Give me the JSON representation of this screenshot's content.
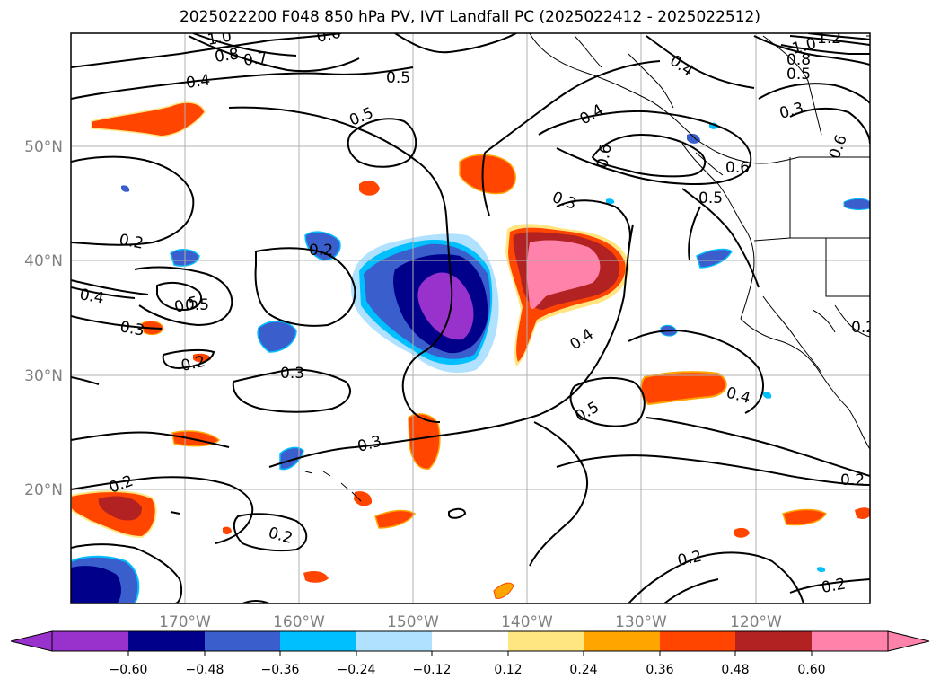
{
  "title": "2025022200 F048 850 hPa PV, IVT Landfall PC (2025022412 - 2025022512)",
  "axes": {
    "lon_ticks": [
      "170°W",
      "160°W",
      "150°W",
      "140°W",
      "130°W",
      "120°W"
    ],
    "lat_ticks": [
      "50°N",
      "40°N",
      "30°N",
      "20°N"
    ]
  },
  "colorbar": {
    "ticks": [
      "−0.60",
      "−0.48",
      "−0.36",
      "−0.24",
      "−0.12",
      "0.12",
      "0.24",
      "0.36",
      "0.48",
      "0.60"
    ],
    "colors": [
      "#9932cc",
      "#00008b",
      "#3a5fcd",
      "#00bfff",
      "#b0e2ff",
      "#ffffff",
      "#ffe680",
      "#ffa500",
      "#ff4500",
      "#b22222",
      "#ff82ab"
    ]
  },
  "contour_labels": [
    "1.0",
    "0.8",
    "0.7",
    "0.6",
    "0.5",
    "0.4",
    "0.5",
    "0.4",
    "0.6",
    "1.2",
    "1.0",
    "0.8",
    "0.5",
    "0.4",
    "0.3",
    "0.6",
    "0.6",
    "0.5",
    "0.5",
    "0.3",
    "0.2",
    "0.2",
    "0.4",
    "0.5",
    "0.3",
    "0.2",
    "0.3",
    "0.4",
    "0.4",
    "0.5",
    "0.3",
    "0.2",
    "0.2",
    "0.2",
    "0.2",
    "0.2",
    "0.2"
  ]
}
